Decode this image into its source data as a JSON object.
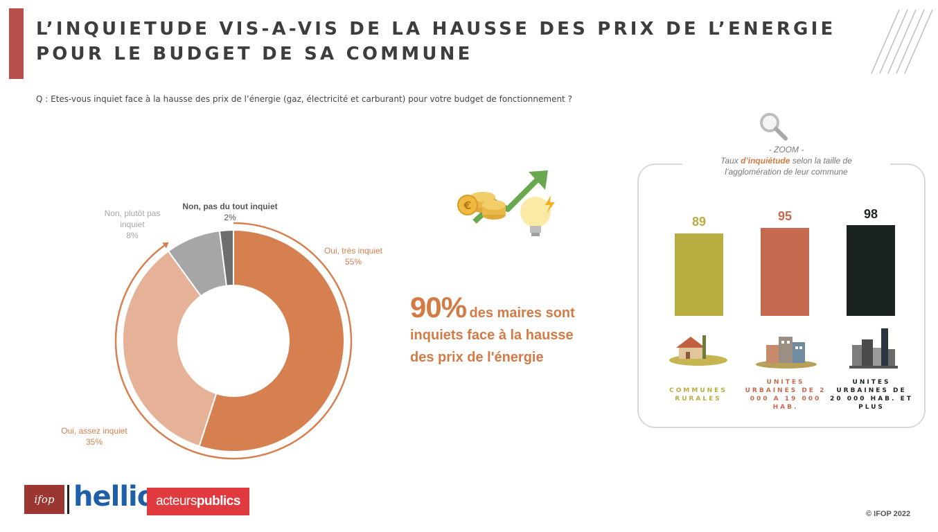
{
  "title_line1": "L’INQUIETUDE VIS-A-VIS DE LA HAUSSE DES PRIX DE L’ENERGIE",
  "title_line2": "POUR LE BUDGET DE SA COMMUNE",
  "question": "Q : Etes-vous inquiet face à la hausse des prix de l’énergie (gaz, électricité et carburant) pour votre budget de fonctionnement ?",
  "colors": {
    "accent": "#b9504e",
    "tres_inquiet": "#d67f4f",
    "assez_inquiet": "#e5b297",
    "plutot_pas": "#a6a6a6",
    "pas_du_tout": "#6e6e6e",
    "rurales": "#b8ad40",
    "urbaines_2000": "#c66a4f",
    "urbaines_20000": "#1b2321"
  },
  "labels": {
    "tres_name": "Oui, très inquiet",
    "tres_value": "55%",
    "assez_name": "Oui, assez inquiet",
    "assez_value": "35%",
    "plutot_name1": "Non, plutôt pas",
    "plutot_name2": "inquiet",
    "plutot_value": "8%",
    "pasdutout_name": "Non, pas du tout inquiet",
    "pasdutout_value": "2%"
  },
  "headline": {
    "pct": "90%",
    "rest": "des maires sont",
    "line2": "inquiets face à la hausse",
    "line3": "des prix de l'énergie"
  },
  "zoom": {
    "title": "- ZOOM -",
    "line1_a": "Taux ",
    "line1_hl": "d’inquiétude",
    "line1_b": " selon la taille de",
    "line2": "l’agglomération de leur commune"
  },
  "categories": {
    "rurales": "COMMUNES RURALES",
    "urbaines_2000": "UNITES URBAINES DE 2 000 A 19 000 HAB.",
    "urbaines_20000": "UNITES URBAINES DE 20 000 HAB. ET PLUS"
  },
  "logos": {
    "ifop": "ifop",
    "hellio": "hellio",
    "ap_a": "acteurs",
    "ap_b": "publics"
  },
  "copyright": "© IFOP 2022",
  "chart_data": [
    {
      "type": "pie",
      "categories": [
        "Oui, très inquiet",
        "Oui, assez inquiet",
        "Non, plutôt pas inquiet",
        "Non, pas du tout inquiet"
      ],
      "values": [
        55,
        35,
        8,
        2
      ],
      "colors": [
        "#d67f4f",
        "#e5b297",
        "#a6a6a6",
        "#6e6e6e"
      ]
    },
    {
      "type": "bar",
      "categories": [
        "COMMUNES RURALES",
        "UNITES URBAINES DE 2 000 A 19 000 HAB.",
        "UNITES URBAINES DE 20 000 HAB. ET PLUS"
      ],
      "values": [
        89,
        95,
        98
      ],
      "value_labels": [
        "89",
        "95",
        "98"
      ],
      "colors": [
        "#b8ad40",
        "#c66a4f",
        "#1b2321"
      ]
    }
  ]
}
